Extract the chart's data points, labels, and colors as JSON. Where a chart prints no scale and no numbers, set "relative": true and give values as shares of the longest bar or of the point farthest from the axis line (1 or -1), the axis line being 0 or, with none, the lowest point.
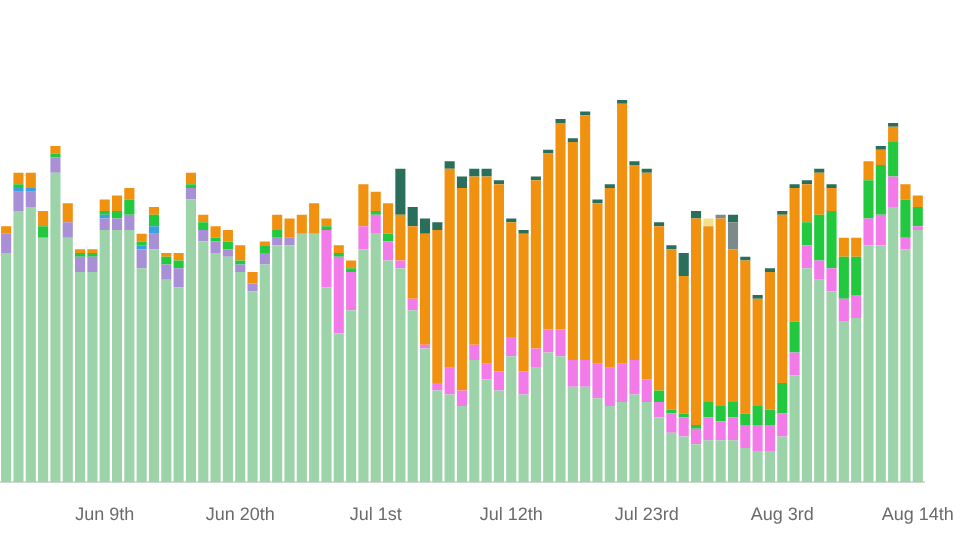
{
  "chart_data": {
    "type": "bar",
    "stacked": true,
    "relative": true,
    "legend": false,
    "categories": [
      null,
      null,
      null,
      null,
      null,
      null,
      null,
      null,
      "Jun 9th",
      null,
      null,
      null,
      null,
      null,
      null,
      null,
      null,
      null,
      null,
      "Jun 20th",
      null,
      null,
      null,
      null,
      null,
      null,
      null,
      null,
      null,
      null,
      "Jul 1st",
      null,
      null,
      null,
      null,
      null,
      null,
      null,
      null,
      null,
      null,
      "Jul 12th",
      null,
      null,
      null,
      null,
      null,
      null,
      null,
      null,
      null,
      null,
      "Jul 23rd",
      null,
      null,
      null,
      null,
      null,
      null,
      null,
      null,
      null,
      null,
      "Aug 3rd",
      null,
      null,
      null,
      null,
      null,
      null,
      null,
      null,
      null,
      null,
      "Aug 14th"
    ],
    "series": [
      {
        "color": "#9dd3a8",
        "values": [
          0.6,
          0.71,
          0.72,
          0.64,
          0.81,
          0.64,
          0.55,
          0.55,
          0.66,
          0.66,
          0.66,
          0.56,
          0.61,
          0.53,
          0.51,
          0.74,
          0.63,
          0.6,
          0.59,
          0.55,
          0.5,
          0.57,
          0.62,
          0.62,
          0.65,
          0.65,
          0.51,
          0.39,
          0.45,
          0.61,
          0.65,
          0.58,
          0.56,
          0.45,
          0.35,
          0.24,
          0.23,
          0.2,
          0.32,
          0.27,
          0.24,
          0.33,
          0.23,
          0.3,
          0.34,
          0.33,
          0.25,
          0.25,
          0.22,
          0.2,
          0.21,
          0.23,
          0.21,
          0.17,
          0.13,
          0.12,
          0.1,
          0.11,
          0.11,
          0.11,
          0.09,
          0.08,
          0.08,
          0.12,
          0.28,
          0.56,
          0.53,
          0.5,
          0.42,
          0.43,
          0.62,
          0.62,
          0.72,
          0.61,
          0.66
        ]
      },
      {
        "color": "#f27be9",
        "values": [
          null,
          null,
          null,
          null,
          null,
          null,
          null,
          null,
          null,
          null,
          null,
          null,
          null,
          null,
          null,
          null,
          null,
          null,
          null,
          null,
          null,
          null,
          null,
          null,
          null,
          null,
          0.15,
          0.2,
          0.1,
          0.06,
          0.05,
          0.05,
          0.02,
          0.03,
          0.01,
          0.02,
          0.07,
          0.04,
          0.04,
          0.04,
          0.05,
          0.05,
          0.06,
          0.05,
          0.06,
          0.07,
          0.07,
          0.07,
          0.09,
          0.1,
          0.1,
          0.09,
          0.06,
          0.04,
          0.05,
          0.05,
          0.04,
          0.06,
          0.05,
          0.06,
          0.06,
          0.07,
          0.07,
          0.06,
          0.06,
          0.06,
          0.05,
          0.06,
          0.06,
          0.06,
          0.07,
          0.08,
          0.08,
          0.03,
          0.01
        ]
      },
      {
        "color": "#a98fd6",
        "values": [
          0.05,
          0.05,
          0.04,
          null,
          0.04,
          0.04,
          0.04,
          0.04,
          0.03,
          0.03,
          0.04,
          0.05,
          0.04,
          0.04,
          0.05,
          0.03,
          0.03,
          0.03,
          0.02,
          0.02,
          0.02,
          0.03,
          0.02,
          0.02,
          null,
          null,
          null,
          null,
          null,
          null,
          null,
          null,
          null,
          null,
          null,
          null,
          null,
          null,
          null,
          null,
          null,
          null,
          null,
          null,
          null,
          null,
          null,
          null,
          null,
          null,
          null,
          null,
          null,
          null,
          null,
          null,
          null,
          null,
          null,
          null,
          null,
          null,
          null,
          null,
          null,
          null,
          null,
          null,
          null,
          null,
          null,
          null,
          null,
          null,
          null
        ]
      },
      {
        "color": "#3aa0e0",
        "values": [
          null,
          0.01,
          0.01,
          null,
          null,
          null,
          null,
          null,
          0.01,
          null,
          null,
          0.01,
          0.02,
          null,
          null,
          null,
          null,
          null,
          null,
          null,
          null,
          null,
          null,
          null,
          null,
          null,
          null,
          null,
          null,
          null,
          null,
          null,
          null,
          null,
          null,
          null,
          null,
          null,
          null,
          null,
          null,
          null,
          null,
          null,
          null,
          null,
          null,
          null,
          null,
          null,
          null,
          null,
          null,
          null,
          null,
          null,
          null,
          null,
          null,
          null,
          null,
          null,
          null,
          null,
          null,
          null,
          null,
          null,
          null,
          null,
          null,
          null,
          null,
          null,
          null
        ]
      },
      {
        "color": "#22c93e",
        "values": [
          null,
          0.01,
          null,
          0.03,
          0.01,
          null,
          0.01,
          0.01,
          0.01,
          0.02,
          0.04,
          0.01,
          0.03,
          0.02,
          0.02,
          0.01,
          0.02,
          0.01,
          0.02,
          0.01,
          null,
          0.02,
          0.02,
          null,
          null,
          null,
          0.01,
          0.01,
          0.01,
          null,
          0.01,
          0.02,
          null,
          null,
          null,
          null,
          null,
          null,
          null,
          null,
          null,
          null,
          null,
          null,
          null,
          null,
          null,
          null,
          null,
          null,
          null,
          null,
          null,
          0.03,
          0.01,
          0.01,
          0.01,
          0.04,
          0.04,
          0.04,
          0.03,
          0.05,
          0.04,
          0.08,
          0.08,
          0.06,
          0.12,
          0.15,
          0.11,
          0.1,
          0.1,
          0.13,
          0.09,
          0.1,
          0.05
        ]
      },
      {
        "color": "#f0910f",
        "values": [
          0.02,
          0.03,
          0.04,
          0.04,
          0.02,
          0.05,
          0.01,
          0.01,
          0.03,
          0.04,
          0.03,
          0.02,
          0.02,
          0.01,
          0.02,
          0.03,
          0.02,
          0.03,
          0.03,
          0.04,
          0.03,
          0.01,
          0.04,
          0.05,
          0.05,
          0.08,
          0.02,
          0.02,
          0.02,
          0.11,
          0.05,
          0.08,
          0.12,
          0.19,
          0.29,
          0.4,
          0.52,
          0.53,
          0.44,
          0.49,
          0.49,
          0.3,
          0.36,
          0.44,
          0.46,
          0.54,
          0.57,
          0.64,
          0.42,
          0.47,
          0.68,
          0.51,
          0.54,
          0.43,
          0.42,
          0.36,
          0.54,
          0.46,
          0.49,
          0.4,
          0.4,
          0.28,
          0.36,
          0.44,
          0.35,
          0.1,
          0.11,
          0.06,
          0.05,
          0.05,
          0.05,
          0.04,
          0.04,
          0.04,
          0.03
        ]
      },
      {
        "color": "#f5e08a",
        "values": [
          null,
          null,
          null,
          null,
          null,
          null,
          null,
          null,
          null,
          null,
          null,
          null,
          null,
          null,
          null,
          null,
          null,
          null,
          null,
          null,
          null,
          null,
          null,
          null,
          null,
          null,
          null,
          null,
          null,
          null,
          null,
          null,
          null,
          null,
          null,
          null,
          null,
          null,
          null,
          null,
          null,
          null,
          null,
          null,
          null,
          null,
          null,
          null,
          null,
          null,
          null,
          null,
          null,
          null,
          null,
          null,
          null,
          0.02,
          null,
          null,
          null,
          null,
          null,
          null,
          null,
          null,
          null,
          null,
          null,
          null,
          null,
          null,
          null,
          null,
          null
        ]
      },
      {
        "color": "#7c8b8a",
        "values": [
          null,
          null,
          null,
          null,
          null,
          null,
          null,
          null,
          null,
          null,
          null,
          null,
          null,
          null,
          null,
          null,
          null,
          null,
          null,
          null,
          null,
          null,
          null,
          null,
          null,
          null,
          null,
          null,
          null,
          null,
          null,
          null,
          null,
          null,
          null,
          null,
          null,
          null,
          null,
          null,
          null,
          null,
          null,
          null,
          null,
          null,
          null,
          null,
          null,
          null,
          null,
          null,
          null,
          null,
          null,
          null,
          null,
          null,
          0.01,
          0.07,
          null,
          null,
          null,
          null,
          null,
          null,
          null,
          null,
          null,
          null,
          null,
          null,
          null,
          null,
          null
        ]
      },
      {
        "color": "#2a6f5c",
        "values": [
          null,
          null,
          null,
          null,
          null,
          null,
          null,
          null,
          null,
          null,
          null,
          null,
          null,
          null,
          null,
          null,
          null,
          null,
          null,
          null,
          null,
          null,
          null,
          null,
          null,
          null,
          null,
          null,
          null,
          null,
          null,
          null,
          0.12,
          0.05,
          0.04,
          0.02,
          0.02,
          0.03,
          0.02,
          0.02,
          0.01,
          0.01,
          0.01,
          0.01,
          0.01,
          0.01,
          0.01,
          0.01,
          0.01,
          0.01,
          0.01,
          0.01,
          0.01,
          0.01,
          0.01,
          0.06,
          0.02,
          null,
          null,
          0.02,
          0.01,
          0.01,
          0.01,
          0.01,
          0.01,
          0.01,
          0.01,
          0.01,
          null,
          null,
          null,
          0.01,
          0.01,
          null,
          null
        ]
      }
    ]
  }
}
